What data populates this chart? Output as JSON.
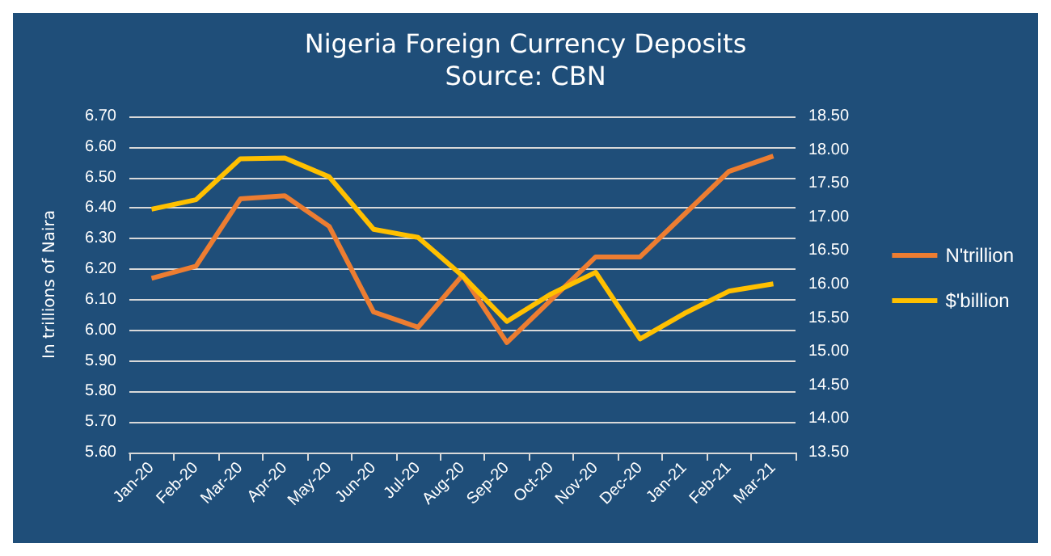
{
  "chart_data": {
    "type": "line",
    "title": "Nigeria Foreign Currency Deposits",
    "subtitle": "Source: CBN",
    "ylabel": "In trillions of Naira",
    "categories": [
      "Jan-20",
      "Feb-20",
      "Mar-20",
      "Apr-20",
      "May-20",
      "Jun-20",
      "Jul-20",
      "Aug-20",
      "Sep-20",
      "Oct-20",
      "Nov-20",
      "Dec-20",
      "Jan-21",
      "Feb-21",
      "Mar-21"
    ],
    "series": [
      {
        "name": "N'trillion",
        "color": "#ed7d31",
        "values": [
          6.17,
          6.21,
          6.43,
          6.44,
          6.34,
          6.06,
          6.01,
          6.18,
          5.96,
          6.1,
          6.24,
          6.24,
          6.38,
          6.52,
          6.57
        ]
      },
      {
        "name": "$'billion",
        "color": "#ffc000",
        "axis": "y2",
        "values": [
          17.12,
          17.26,
          17.87,
          17.88,
          17.6,
          16.82,
          16.7,
          16.13,
          15.45,
          15.86,
          16.18,
          15.19,
          15.57,
          15.9,
          16.01
        ]
      }
    ],
    "ylim": [
      5.6,
      6.7
    ],
    "yticks": [
      {
        "value": 5.6,
        "label": "5.60"
      },
      {
        "value": 5.7,
        "label": "5.70"
      },
      {
        "value": 5.8,
        "label": "5.80"
      },
      {
        "value": 5.9,
        "label": "5.90"
      },
      {
        "value": 6.0,
        "label": "6.00"
      },
      {
        "value": 6.1,
        "label": "6.10"
      },
      {
        "value": 6.2,
        "label": "6.20"
      },
      {
        "value": 6.3,
        "label": "6.30"
      },
      {
        "value": 6.4,
        "label": "6.40"
      },
      {
        "value": 6.5,
        "label": "6.50"
      },
      {
        "value": 6.6,
        "label": "6.60"
      },
      {
        "value": 6.7,
        "label": "6.70"
      }
    ],
    "y2lim": [
      13.5,
      18.5
    ],
    "y2ticks": [
      {
        "value": 13.5,
        "label": "13.50"
      },
      {
        "value": 14,
        "label": "14.00"
      },
      {
        "value": 14.5,
        "label": "14.50"
      },
      {
        "value": 15,
        "label": "15.00"
      },
      {
        "value": 15.5,
        "label": "15.50"
      },
      {
        "value": 16,
        "label": "16.00"
      },
      {
        "value": 16.5,
        "label": "16.50"
      },
      {
        "value": 17,
        "label": "17.00"
      },
      {
        "value": 17.5,
        "label": "17.50"
      },
      {
        "value": 18,
        "label": "18.00"
      },
      {
        "value": 18.5,
        "label": "18.50"
      }
    ],
    "grid": "y",
    "legend": "right",
    "marker": "none",
    "line_style": "solid"
  }
}
